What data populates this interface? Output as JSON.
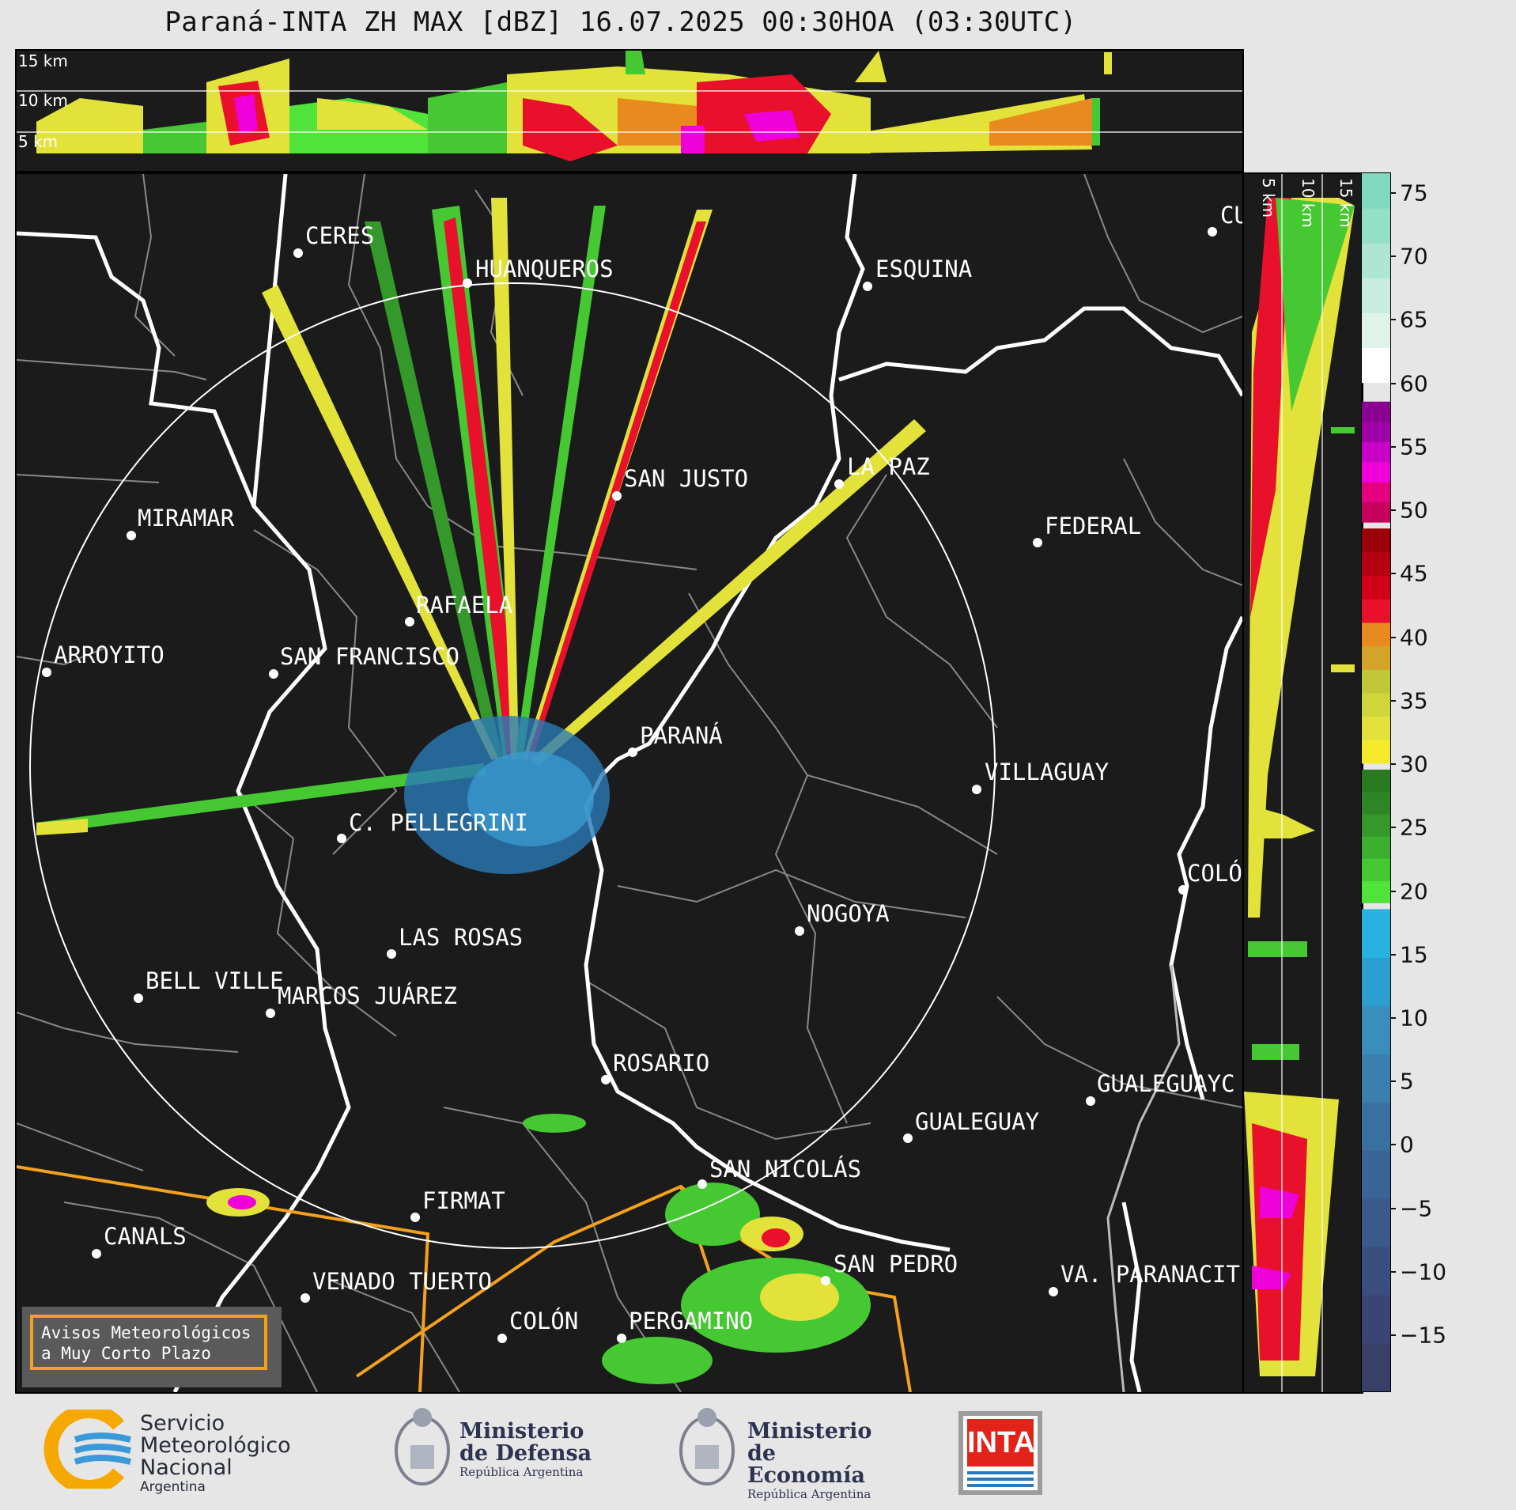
{
  "title": "Paraná-INTA ZH MAX [dBZ] 16.07.2025 00:30HOA (03:30UTC)",
  "top_panel": {
    "alt_labels": [
      "15 km",
      "10 km",
      "5 km"
    ]
  },
  "side_panel": {
    "alt_labels": [
      "5 km",
      "10 km",
      "15 km"
    ]
  },
  "colorbar": {
    "ticks": [
      "75",
      "70",
      "65",
      "60",
      "55",
      "50",
      "45",
      "40",
      "35",
      "30",
      "25",
      "20",
      "15",
      "10",
      "5",
      "0",
      "−5",
      "−10",
      "−15"
    ],
    "range": [
      -19.5,
      76.5
    ],
    "bands": [
      {
        "from": 60,
        "to": 76.5,
        "colors": [
          "#ffffff",
          "#e0f3ea",
          "#c7ece0",
          "#aee6d3",
          "#95dfc6",
          "#80d9bc"
        ]
      },
      {
        "from": 49,
        "to": 58.5,
        "colors": [
          "#c4005c",
          "#e4007e",
          "#f000d8",
          "#c800c8",
          "#a000a8",
          "#8a0090"
        ]
      },
      {
        "from": 30,
        "to": 48.5,
        "colors": [
          "#f5ea2a",
          "#e2e23a",
          "#cfd63a",
          "#c0c83a",
          "#d4a42a",
          "#e88a1e",
          "#e8102a",
          "#d00018",
          "#b40010",
          "#990008"
        ]
      },
      {
        "from": 19,
        "to": 29.5,
        "colors": [
          "#50e33a",
          "#46c832",
          "#3caf2e",
          "#35982a",
          "#2e8526",
          "#2a7a22"
        ]
      },
      {
        "from": -19.5,
        "to": 18.5,
        "colors": [
          "#3a3f6a",
          "#3a4574",
          "#3a4f80",
          "#3a5a8a",
          "#3a6495",
          "#3a70a0",
          "#3a7fae",
          "#3a8ebc",
          "#2a9fd0",
          "#28b2e0"
        ]
      }
    ]
  },
  "cities": [
    {
      "name": "CERES"
    },
    {
      "name": "HUANQUEROS"
    },
    {
      "name": "ESQUINA"
    },
    {
      "name": "CU"
    },
    {
      "name": "SAN JUSTO"
    },
    {
      "name": "LA PAZ"
    },
    {
      "name": "MIRAMAR"
    },
    {
      "name": "FEDERAL"
    },
    {
      "name": "RAFAELA"
    },
    {
      "name": "ARROYITO"
    },
    {
      "name": "SAN FRANCISCO"
    },
    {
      "name": "PARANÁ"
    },
    {
      "name": "VILLAGUAY"
    },
    {
      "name": "C. PELLEGRINI"
    },
    {
      "name": "COLÓ"
    },
    {
      "name": "NOGOYA"
    },
    {
      "name": "LAS ROSAS"
    },
    {
      "name": "BELL VILLE"
    },
    {
      "name": "MARCOS JUÁREZ"
    },
    {
      "name": "ROSARIO"
    },
    {
      "name": "GUALEGUAYC"
    },
    {
      "name": "GUALEGUAY"
    },
    {
      "name": "SAN NICOLÁS"
    },
    {
      "name": "FIRMAT"
    },
    {
      "name": "CANALS"
    },
    {
      "name": "SAN PEDRO"
    },
    {
      "name": "VENADO TUERTO"
    },
    {
      "name": "VA. PARANACIT"
    },
    {
      "name": "COLÓN"
    },
    {
      "name": "PERGAMINO"
    }
  ],
  "warning_box": {
    "line1": "Avisos Meteorológicos",
    "line2": "a Muy Corto Plazo"
  },
  "logos": {
    "smn": {
      "line1": "Servicio",
      "line2": "Meteorológico",
      "line3": "Nacional",
      "line4": "Argentina"
    },
    "defensa": {
      "line1": "Ministerio",
      "line2": "de Defensa",
      "line3": "República Argentina"
    },
    "economia": {
      "line1": "Ministerio",
      "line2": "de Economía",
      "line3": "República Argentina"
    },
    "inta": {
      "text": "INTA"
    }
  },
  "colors": {
    "ring": "#ffffff",
    "country_border": "#ffffff",
    "province_border": "#888888",
    "route": "#f4a11d",
    "panel_bg": "#1b1b1b"
  }
}
